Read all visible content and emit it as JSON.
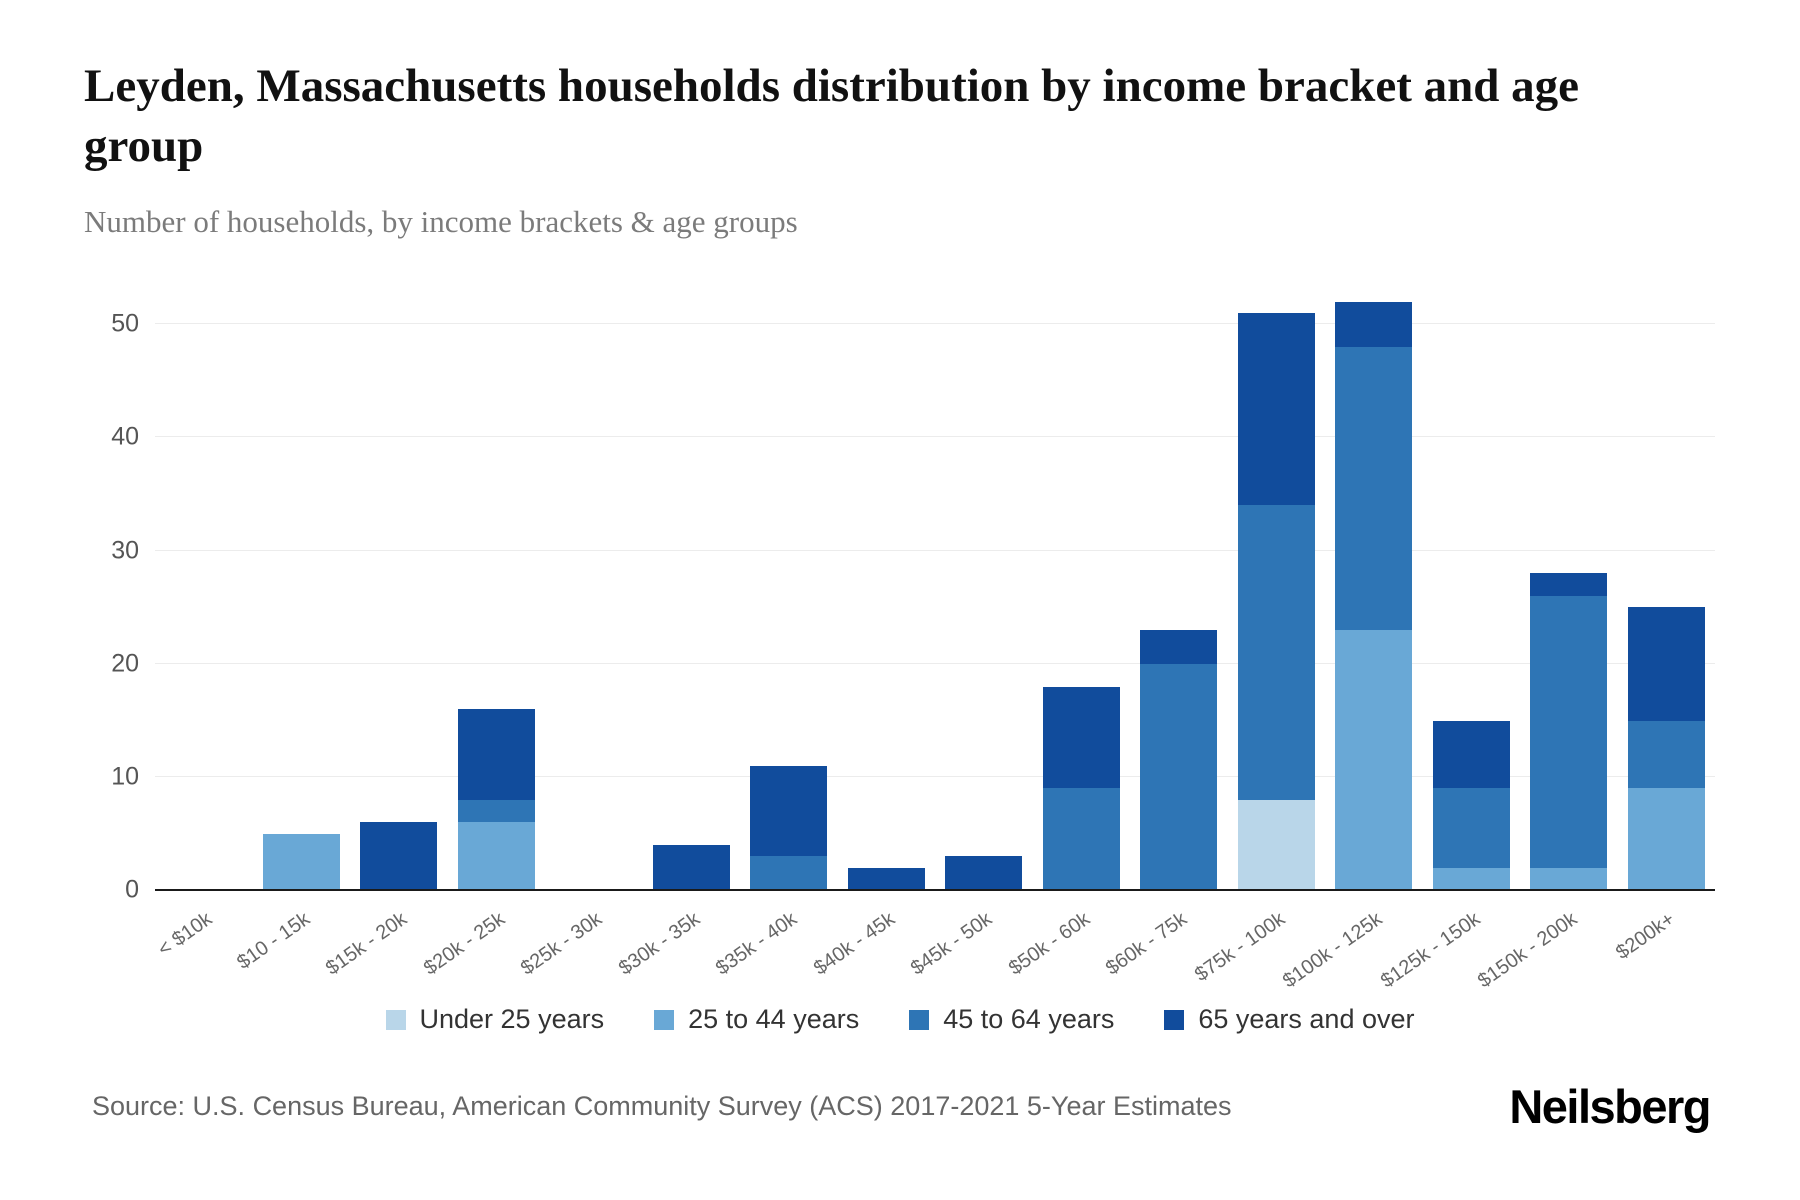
{
  "title": "Leyden, Massachusetts households distribution by income bracket and age group",
  "subtitle": "Number of households, by income brackets & age groups",
  "source": "Source: U.S. Census Bureau, American Community Survey (ACS) 2017-2021 5-Year Estimates",
  "brand": "Neilsberg",
  "chart_data": {
    "type": "bar",
    "stacked": true,
    "title": "Leyden, Massachusetts households distribution by income bracket and age group",
    "xlabel": "",
    "ylabel": "Number of households",
    "ylim": [
      0,
      53
    ],
    "yticks": [
      0,
      10,
      20,
      30,
      40,
      50
    ],
    "grid": true,
    "legend_position": "bottom",
    "categories": [
      "< $10k",
      "$10 - 15k",
      "$15k - 20k",
      "$20k - 25k",
      "$25k - 30k",
      "$30k - 35k",
      "$35k - 40k",
      "$40k - 45k",
      "$45k - 50k",
      "$50k - 60k",
      "$60k - 75k",
      "$75k - 100k",
      "$100k - 125k",
      "$125k - 150k",
      "$150k - 200k",
      "$200k+"
    ],
    "series": [
      {
        "name": "Under 25 years",
        "color": "#b9d6e9",
        "values": [
          0,
          0,
          0,
          0,
          0,
          0,
          0,
          0,
          0,
          0,
          0,
          8,
          0,
          0,
          0,
          0
        ]
      },
      {
        "name": "25 to 44 years",
        "color": "#69a8d6",
        "values": [
          0,
          5,
          0,
          6,
          0,
          0,
          0,
          0,
          0,
          0,
          0,
          0,
          23,
          2,
          2,
          9
        ]
      },
      {
        "name": "45 to 64 years",
        "color": "#2e75b5",
        "values": [
          0,
          0,
          0,
          2,
          0,
          0,
          3,
          0,
          0,
          9,
          20,
          26,
          25,
          7,
          24,
          6
        ]
      },
      {
        "name": "65 years and over",
        "color": "#114c9c",
        "values": [
          0,
          0,
          6,
          8,
          0,
          4,
          8,
          2,
          3,
          9,
          3,
          17,
          4,
          6,
          2,
          10
        ]
      }
    ]
  }
}
